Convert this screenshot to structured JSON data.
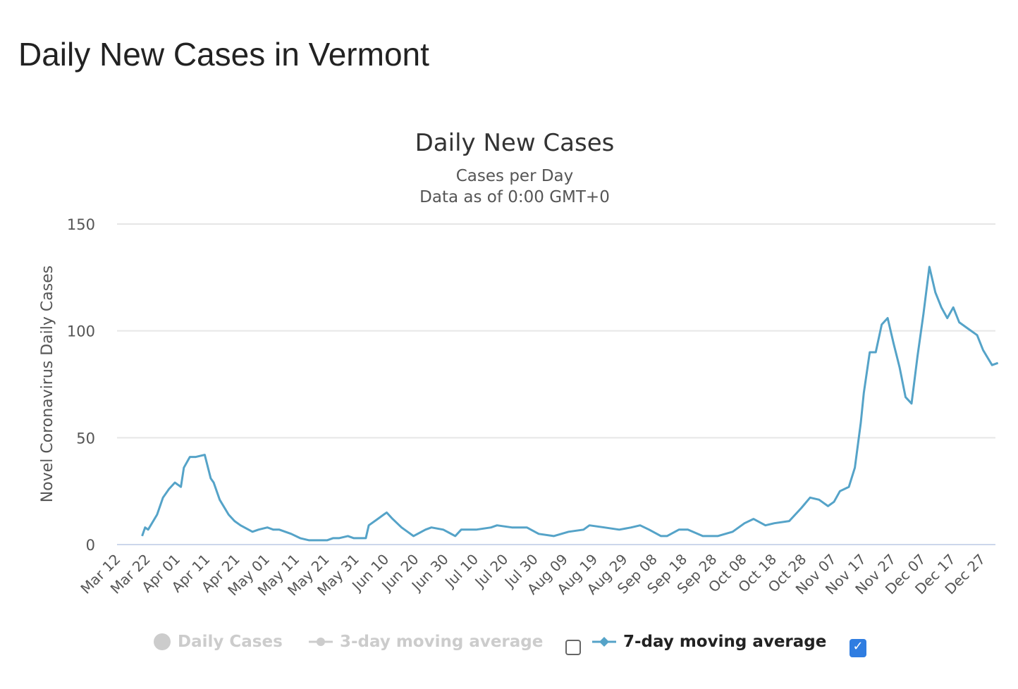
{
  "page_title": "Daily New Cases in Vermont",
  "chart_data": {
    "type": "line",
    "title": "Daily New Cases",
    "subtitle_lines": [
      "Cases per Day",
      "Data as of 0:00 GMT+0"
    ],
    "ylabel": "Novel Coronavirus Daily Cases",
    "xlabel": "",
    "ylim": [
      0,
      150
    ],
    "yticks": [
      0,
      50,
      100,
      150
    ],
    "grid": true,
    "legend_placement": "bottom",
    "xticks": [
      "Mar 12",
      "Mar 22",
      "Apr 01",
      "Apr 11",
      "Apr 21",
      "May 01",
      "May 11",
      "May 21",
      "May 31",
      "Jun 10",
      "Jun 20",
      "Jun 30",
      "Jul 10",
      "Jul 20",
      "Jul 30",
      "Aug 09",
      "Aug 19",
      "Aug 29",
      "Sep 08",
      "Sep 18",
      "Sep 28",
      "Oct 08",
      "Oct 18",
      "Oct 28",
      "Nov 07",
      "Nov 17",
      "Nov 27",
      "Dec 07",
      "Dec 17",
      "Dec 27"
    ],
    "series": [
      {
        "name": "Daily Cases",
        "visible": false,
        "color": "#cccccc"
      },
      {
        "name": "3-day moving average",
        "visible": false,
        "color": "#cccccc"
      },
      {
        "name": "7-day moving average",
        "visible": true,
        "color": "#55a3c8",
        "points": [
          [
            "2020-03-19",
            4
          ],
          [
            "2020-03-20",
            8
          ],
          [
            "2020-03-21",
            7
          ],
          [
            "2020-03-24",
            14
          ],
          [
            "2020-03-26",
            22
          ],
          [
            "2020-03-28",
            26
          ],
          [
            "2020-03-30",
            29
          ],
          [
            "2020-04-01",
            27
          ],
          [
            "2020-04-02",
            36
          ],
          [
            "2020-04-04",
            41
          ],
          [
            "2020-04-06",
            41
          ],
          [
            "2020-04-09",
            42
          ],
          [
            "2020-04-11",
            31
          ],
          [
            "2020-04-12",
            29
          ],
          [
            "2020-04-14",
            21
          ],
          [
            "2020-04-17",
            14
          ],
          [
            "2020-04-19",
            11
          ],
          [
            "2020-04-21",
            9
          ],
          [
            "2020-04-25",
            6
          ],
          [
            "2020-04-27",
            7
          ],
          [
            "2020-04-30",
            8
          ],
          [
            "2020-05-02",
            7
          ],
          [
            "2020-05-04",
            7
          ],
          [
            "2020-05-08",
            5
          ],
          [
            "2020-05-11",
            3
          ],
          [
            "2020-05-14",
            2
          ],
          [
            "2020-05-20",
            2
          ],
          [
            "2020-05-22",
            3
          ],
          [
            "2020-05-24",
            3
          ],
          [
            "2020-05-27",
            4
          ],
          [
            "2020-05-29",
            3
          ],
          [
            "2020-06-02",
            3
          ],
          [
            "2020-06-03",
            9
          ],
          [
            "2020-06-06",
            12
          ],
          [
            "2020-06-08",
            14
          ],
          [
            "2020-06-09",
            15
          ],
          [
            "2020-06-11",
            12
          ],
          [
            "2020-06-14",
            8
          ],
          [
            "2020-06-16",
            6
          ],
          [
            "2020-06-18",
            4
          ],
          [
            "2020-06-22",
            7
          ],
          [
            "2020-06-24",
            8
          ],
          [
            "2020-06-28",
            7
          ],
          [
            "2020-07-02",
            4
          ],
          [
            "2020-07-04",
            7
          ],
          [
            "2020-07-09",
            7
          ],
          [
            "2020-07-14",
            8
          ],
          [
            "2020-07-16",
            9
          ],
          [
            "2020-07-21",
            8
          ],
          [
            "2020-07-26",
            8
          ],
          [
            "2020-07-30",
            5
          ],
          [
            "2020-08-04",
            4
          ],
          [
            "2020-08-09",
            6
          ],
          [
            "2020-08-14",
            7
          ],
          [
            "2020-08-16",
            9
          ],
          [
            "2020-08-21",
            8
          ],
          [
            "2020-08-26",
            7
          ],
          [
            "2020-08-30",
            8
          ],
          [
            "2020-09-02",
            9
          ],
          [
            "2020-09-05",
            7
          ],
          [
            "2020-09-09",
            4
          ],
          [
            "2020-09-11",
            4
          ],
          [
            "2020-09-15",
            7
          ],
          [
            "2020-09-18",
            7
          ],
          [
            "2020-09-23",
            4
          ],
          [
            "2020-09-28",
            4
          ],
          [
            "2020-10-03",
            6
          ],
          [
            "2020-10-07",
            10
          ],
          [
            "2020-10-10",
            12
          ],
          [
            "2020-10-14",
            9
          ],
          [
            "2020-10-17",
            10
          ],
          [
            "2020-10-22",
            11
          ],
          [
            "2020-10-26",
            17
          ],
          [
            "2020-10-29",
            22
          ],
          [
            "2020-11-01",
            21
          ],
          [
            "2020-11-04",
            18
          ],
          [
            "2020-11-06",
            20
          ],
          [
            "2020-11-08",
            25
          ],
          [
            "2020-11-11",
            27
          ],
          [
            "2020-11-13",
            36
          ],
          [
            "2020-11-15",
            57
          ],
          [
            "2020-11-16",
            71
          ],
          [
            "2020-11-18",
            90
          ],
          [
            "2020-11-20",
            90
          ],
          [
            "2020-11-22",
            103
          ],
          [
            "2020-11-24",
            106
          ],
          [
            "2020-11-26",
            94
          ],
          [
            "2020-11-28",
            83
          ],
          [
            "2020-11-30",
            69
          ],
          [
            "2020-12-02",
            66
          ],
          [
            "2020-12-04",
            88
          ],
          [
            "2020-12-06",
            108
          ],
          [
            "2020-12-08",
            130
          ],
          [
            "2020-12-10",
            118
          ],
          [
            "2020-12-12",
            111
          ],
          [
            "2020-12-14",
            106
          ],
          [
            "2020-12-16",
            111
          ],
          [
            "2020-12-18",
            104
          ],
          [
            "2020-12-21",
            101
          ],
          [
            "2020-12-24",
            98
          ],
          [
            "2020-12-26",
            91
          ],
          [
            "2020-12-29",
            84
          ],
          [
            "2020-12-31",
            85
          ]
        ]
      }
    ]
  },
  "legend": {
    "items": [
      {
        "label": "Daily Cases",
        "active": false,
        "icon": "circle-icon"
      },
      {
        "label": "3-day moving average",
        "active": false,
        "icon": "line-diamond-icon",
        "checkbox_checked": false
      },
      {
        "label": "7-day moving average",
        "active": true,
        "icon": "line-diamond-icon",
        "checkbox_checked": true
      }
    ]
  }
}
